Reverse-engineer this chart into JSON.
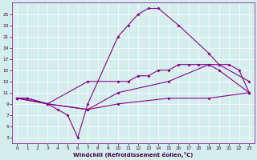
{
  "xlabel": "Windchill (Refroidissement éolien,°C)",
  "background_color": "#d4eeee",
  "line_color": "#880088",
  "xlim": [
    -0.5,
    23.5
  ],
  "ylim": [
    2,
    27
  ],
  "yticks": [
    3,
    5,
    7,
    9,
    11,
    13,
    15,
    17,
    19,
    21,
    23,
    25
  ],
  "xticks": [
    0,
    1,
    2,
    3,
    4,
    5,
    6,
    7,
    8,
    9,
    10,
    11,
    12,
    13,
    14,
    15,
    16,
    17,
    18,
    19,
    20,
    21,
    22,
    23
  ],
  "line1_x": [
    0,
    1,
    3,
    4,
    5,
    6,
    7,
    10,
    11,
    12,
    13,
    14,
    16,
    19,
    20,
    23
  ],
  "line1_y": [
    10,
    10,
    9,
    8,
    7,
    3,
    9,
    21,
    23,
    25,
    26,
    26,
    23,
    18,
    16,
    13
  ],
  "line2_x": [
    0,
    1,
    3,
    7,
    10,
    11,
    12,
    13,
    14,
    15,
    16,
    17,
    18,
    19,
    20,
    21,
    22,
    23
  ],
  "line2_y": [
    10,
    10,
    9,
    13,
    13,
    13,
    14,
    14,
    15,
    15,
    16,
    16,
    16,
    16,
    16,
    16,
    15,
    11
  ],
  "line3_x": [
    0,
    3,
    7,
    10,
    15,
    19,
    20,
    23
  ],
  "line3_y": [
    10,
    9,
    8,
    11,
    13,
    16,
    15,
    11
  ],
  "line4_x": [
    0,
    3,
    7,
    10,
    15,
    19,
    23
  ],
  "line4_y": [
    10,
    9,
    8,
    9,
    10,
    10,
    11
  ]
}
